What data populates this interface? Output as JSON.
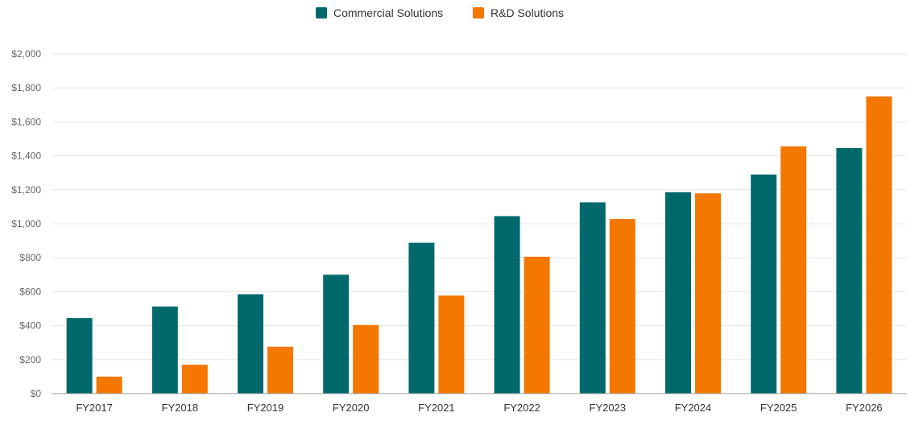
{
  "chart_data": {
    "type": "bar",
    "title": "",
    "xlabel": "",
    "ylabel": "",
    "categories": [
      "FY2017",
      "FY2018",
      "FY2019",
      "FY2020",
      "FY2021",
      "FY2022",
      "FY2023",
      "FY2024",
      "FY2025",
      "FY2026"
    ],
    "series": [
      {
        "name": "Commercial Solutions",
        "color": "#01696b",
        "values": [
          445,
          513,
          585,
          700,
          888,
          1045,
          1126,
          1186,
          1290,
          1446
        ]
      },
      {
        "name": "R&D Solutions",
        "color": "#f47700",
        "values": [
          100,
          170,
          276,
          404,
          577,
          806,
          1028,
          1179,
          1456,
          1750
        ]
      }
    ],
    "ylim": [
      0,
      2000
    ],
    "yticks": [
      0,
      200,
      400,
      600,
      800,
      1000,
      1200,
      1400,
      1600,
      1800,
      2000
    ],
    "ytick_labels": [
      "$0",
      "$200",
      "$400",
      "$600",
      "$800",
      "$1,000",
      "$1,200",
      "$1,400",
      "$1,600",
      "$1,800",
      "$2,000"
    ],
    "grid": true,
    "legend_position": "top-center",
    "colors": {
      "grid": "#e6e6e6",
      "axis": "#999999"
    }
  }
}
